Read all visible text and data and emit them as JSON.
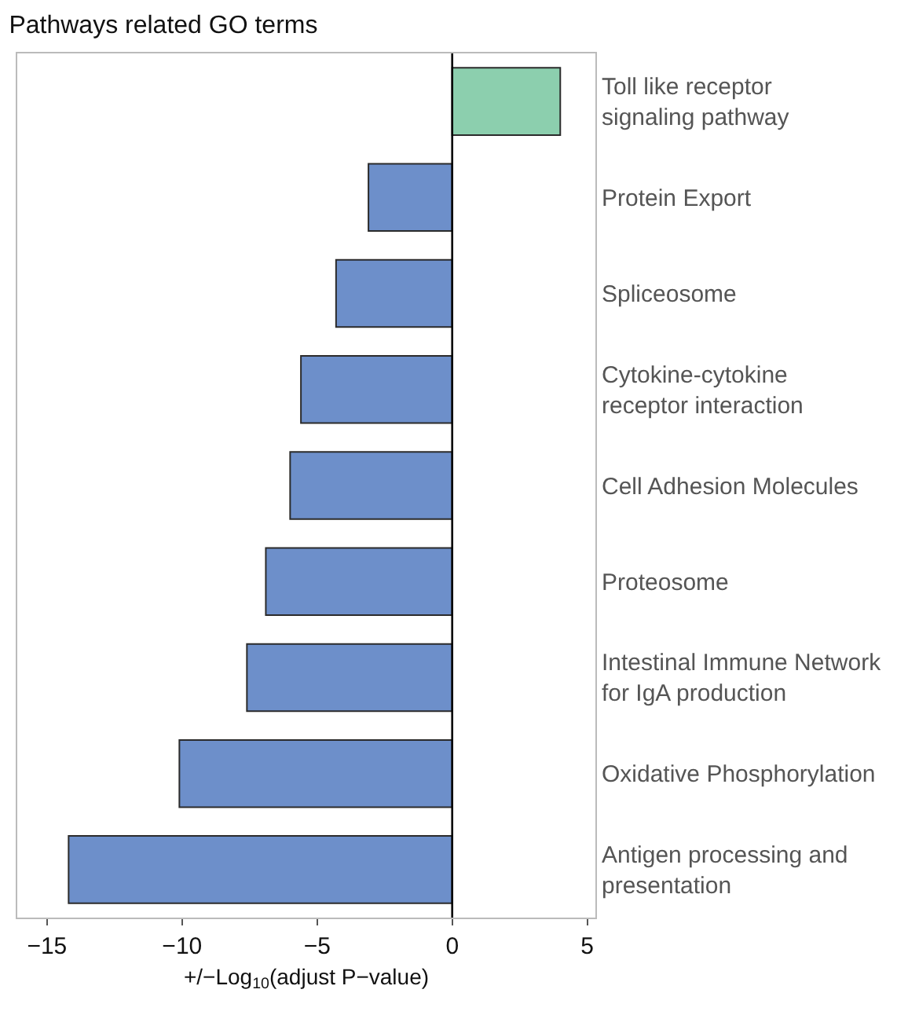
{
  "chart_data": {
    "type": "bar",
    "orientation": "horizontal",
    "title": "Pathways related GO terms",
    "xlabel": "+/−Log$_{10}$(adjust P−value)",
    "categories": [
      "Toll like receptor\nsignaling pathway",
      "Protein Export",
      "Spliceosome",
      "Cytokine-cytokine\nreceptor interaction",
      "Cell Adhesion Molecules",
      "Proteosome",
      "Intestinal Immune Network\nfor IgA production",
      "Oxidative Phosphorylation",
      "Antigen processing and\npresentation"
    ],
    "values": [
      4.0,
      -3.1,
      -4.3,
      -5.6,
      -6.0,
      -6.9,
      -7.6,
      -10.1,
      -14.2
    ],
    "colors": [
      "#8ccfae",
      "#6d8fca",
      "#6d8fca",
      "#6d8fca",
      "#6d8fca",
      "#6d8fca",
      "#6d8fca",
      "#6d8fca",
      "#6d8fca"
    ],
    "xlim": [
      -16.1,
      5.3
    ],
    "xticks": [
      {
        "value": -15,
        "label": "−15"
      },
      {
        "value": -10,
        "label": "−10"
      },
      {
        "value": -5,
        "label": "−5"
      },
      0,
      5
    ],
    "ref_lines": [
      {
        "axis": "x",
        "value": 0,
        "color": "#000000"
      }
    ],
    "legend": false
  }
}
